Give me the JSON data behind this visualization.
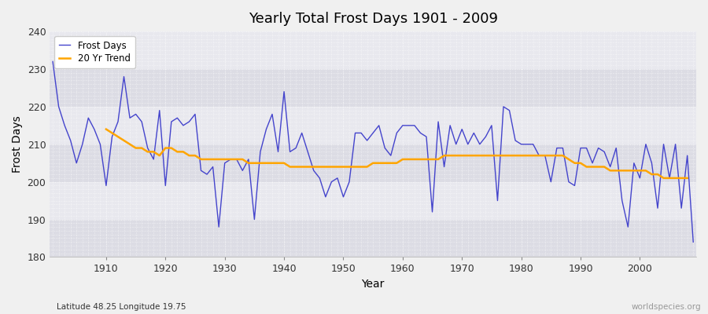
{
  "title": "Yearly Total Frost Days 1901 - 2009",
  "xlabel": "Year",
  "ylabel": "Frost Days",
  "subtitle": "Latitude 48.25 Longitude 19.75",
  "watermark": "worldspecies.org",
  "ylim": [
    180,
    240
  ],
  "yticks": [
    180,
    190,
    200,
    210,
    220,
    230,
    240
  ],
  "line_color": "#4444cc",
  "trend_color": "#FFA500",
  "bg_color": "#f0f0f0",
  "plot_bg_color": "#e8e8ee",
  "band_color1": "#e0e0e8",
  "band_color2": "#ebebf2",
  "years": [
    1901,
    1902,
    1903,
    1904,
    1905,
    1906,
    1907,
    1908,
    1909,
    1910,
    1911,
    1912,
    1913,
    1914,
    1915,
    1916,
    1917,
    1918,
    1919,
    1920,
    1921,
    1922,
    1923,
    1924,
    1925,
    1926,
    1927,
    1928,
    1929,
    1930,
    1931,
    1932,
    1933,
    1934,
    1935,
    1936,
    1937,
    1938,
    1939,
    1940,
    1941,
    1942,
    1943,
    1944,
    1945,
    1946,
    1947,
    1948,
    1949,
    1950,
    1951,
    1952,
    1953,
    1954,
    1955,
    1956,
    1957,
    1958,
    1959,
    1960,
    1961,
    1962,
    1963,
    1964,
    1965,
    1966,
    1967,
    1968,
    1969,
    1970,
    1971,
    1972,
    1973,
    1974,
    1975,
    1976,
    1977,
    1978,
    1979,
    1980,
    1981,
    1982,
    1983,
    1984,
    1985,
    1986,
    1987,
    1988,
    1989,
    1990,
    1991,
    1992,
    1993,
    1994,
    1995,
    1996,
    1997,
    1998,
    1999,
    2000,
    2001,
    2002,
    2003,
    2004,
    2005,
    2006,
    2007,
    2008,
    2009
  ],
  "frost_days": [
    232,
    220,
    215,
    211,
    205,
    210,
    217,
    214,
    210,
    199,
    212,
    216,
    228,
    217,
    218,
    216,
    209,
    206,
    219,
    199,
    216,
    217,
    215,
    216,
    218,
    203,
    202,
    204,
    188,
    205,
    206,
    206,
    203,
    206,
    190,
    208,
    214,
    218,
    208,
    224,
    208,
    209,
    213,
    208,
    203,
    201,
    196,
    200,
    201,
    196,
    200,
    213,
    213,
    211,
    213,
    215,
    209,
    207,
    213,
    215,
    215,
    215,
    213,
    212,
    192,
    216,
    204,
    215,
    210,
    214,
    210,
    213,
    210,
    212,
    215,
    195,
    220,
    219,
    211,
    210,
    210,
    210,
    207,
    207,
    200,
    209,
    209,
    200,
    199,
    209,
    209,
    205,
    209,
    208,
    204,
    209,
    195,
    188,
    205,
    201,
    210,
    205,
    193,
    210,
    201,
    210,
    193,
    207,
    184
  ],
  "trend_values": [
    null,
    null,
    null,
    null,
    null,
    null,
    null,
    null,
    null,
    214,
    213,
    212,
    211,
    210,
    209,
    209,
    208,
    208,
    207,
    209,
    209,
    208,
    208,
    207,
    207,
    206,
    206,
    206,
    206,
    206,
    206,
    206,
    206,
    205,
    205,
    205,
    205,
    205,
    205,
    205,
    204,
    204,
    204,
    204,
    204,
    204,
    204,
    204,
    204,
    204,
    204,
    204,
    204,
    204,
    205,
    205,
    205,
    205,
    205,
    206,
    206,
    206,
    206,
    206,
    206,
    206,
    207,
    207,
    207,
    207,
    207,
    207,
    207,
    207,
    207,
    207,
    207,
    207,
    207,
    207,
    207,
    207,
    207,
    207,
    207,
    207,
    207,
    206,
    205,
    205,
    204,
    204,
    204,
    204,
    203,
    203,
    203,
    203,
    203,
    203,
    203,
    202,
    202,
    201,
    201,
    201,
    201,
    201,
    null
  ]
}
